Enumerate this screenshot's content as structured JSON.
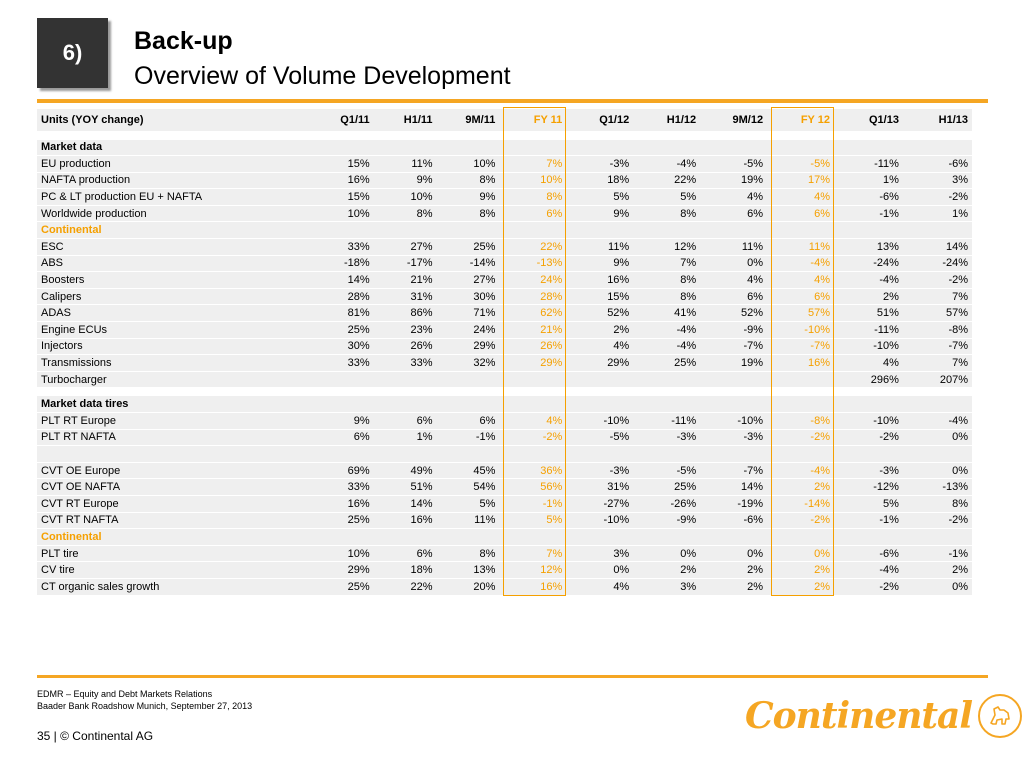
{
  "header": {
    "badge": "6)",
    "title": "Back-up",
    "subtitle": "Overview of Volume Development"
  },
  "table": {
    "columns": [
      "Units (YOY change)",
      "Q1/11",
      "H1/11",
      "9M/11",
      "FY 11",
      "Q1/12",
      "H1/12",
      "9M/12",
      "FY 12",
      "Q1/13",
      "H1/13"
    ],
    "rows": [
      {
        "type": "header"
      },
      {
        "type": "spacer"
      },
      {
        "type": "bold",
        "label": "Market data",
        "values": [
          "",
          "",
          "",
          "",
          "",
          "",
          "",
          "",
          "",
          ""
        ]
      },
      {
        "type": "row",
        "label": "EU production",
        "values": [
          "15%",
          "11%",
          "10%",
          "7%",
          "-3%",
          "-4%",
          "-5%",
          "-5%",
          "-11%",
          "-6%"
        ]
      },
      {
        "type": "row",
        "label": "NAFTA production",
        "values": [
          "16%",
          "9%",
          "8%",
          "10%",
          "18%",
          "22%",
          "19%",
          "17%",
          "1%",
          "3%"
        ]
      },
      {
        "type": "row",
        "label": "PC & LT production EU + NAFTA",
        "values": [
          "15%",
          "10%",
          "9%",
          "8%",
          "5%",
          "5%",
          "4%",
          "4%",
          "-6%",
          "-2%"
        ]
      },
      {
        "type": "row",
        "label": "Worldwide production",
        "values": [
          "10%",
          "8%",
          "8%",
          "6%",
          "9%",
          "8%",
          "6%",
          "6%",
          "-1%",
          "1%"
        ]
      },
      {
        "type": "section",
        "label": "Continental",
        "values": [
          "",
          "",
          "",
          "",
          "",
          "",
          "",
          "",
          "",
          ""
        ]
      },
      {
        "type": "row",
        "label": "ESC",
        "values": [
          "33%",
          "27%",
          "25%",
          "22%",
          "11%",
          "12%",
          "11%",
          "11%",
          "13%",
          "14%"
        ]
      },
      {
        "type": "row",
        "label": "ABS",
        "values": [
          "-18%",
          "-17%",
          "-14%",
          "-13%",
          "9%",
          "7%",
          "0%",
          "-4%",
          "-24%",
          "-24%"
        ]
      },
      {
        "type": "row",
        "label": "Boosters",
        "values": [
          "14%",
          "21%",
          "27%",
          "24%",
          "16%",
          "8%",
          "4%",
          "4%",
          "-4%",
          "-2%"
        ]
      },
      {
        "type": "row",
        "label": "Calipers",
        "values": [
          "28%",
          "31%",
          "30%",
          "28%",
          "15%",
          "8%",
          "6%",
          "6%",
          "2%",
          "7%"
        ]
      },
      {
        "type": "row",
        "label": "ADAS",
        "values": [
          "81%",
          "86%",
          "71%",
          "62%",
          "52%",
          "41%",
          "52%",
          "57%",
          "51%",
          "57%"
        ]
      },
      {
        "type": "row",
        "label": "Engine ECUs",
        "values": [
          "25%",
          "23%",
          "24%",
          "21%",
          "2%",
          "-4%",
          "-9%",
          "-10%",
          "-11%",
          "-8%"
        ]
      },
      {
        "type": "row",
        "label": "Injectors",
        "values": [
          "30%",
          "26%",
          "29%",
          "26%",
          "4%",
          "-4%",
          "-7%",
          "-7%",
          "-10%",
          "-7%"
        ]
      },
      {
        "type": "row",
        "label": "Transmissions",
        "values": [
          "33%",
          "33%",
          "32%",
          "29%",
          "29%",
          "25%",
          "19%",
          "16%",
          "4%",
          "7%"
        ]
      },
      {
        "type": "row",
        "label": "Turbocharger",
        "values": [
          "",
          "",
          "",
          "",
          "",
          "",
          "",
          "",
          "296%",
          "207%"
        ]
      },
      {
        "type": "spacer"
      },
      {
        "type": "bold",
        "label": "Market data tires",
        "values": [
          "",
          "",
          "",
          "",
          "",
          "",
          "",
          "",
          "",
          ""
        ]
      },
      {
        "type": "row",
        "label": "PLT RT Europe",
        "values": [
          "9%",
          "6%",
          "6%",
          "4%",
          "-10%",
          "-11%",
          "-10%",
          "-8%",
          "-10%",
          "-4%"
        ]
      },
      {
        "type": "row",
        "label": "PLT RT NAFTA",
        "values": [
          "6%",
          "1%",
          "-1%",
          "-2%",
          "-5%",
          "-3%",
          "-3%",
          "-2%",
          "-2%",
          "0%"
        ]
      },
      {
        "type": "row",
        "label": "",
        "values": [
          "",
          "",
          "",
          "",
          "",
          "",
          "",
          "",
          "",
          ""
        ]
      },
      {
        "type": "row",
        "label": "CVT OE Europe",
        "values": [
          "69%",
          "49%",
          "45%",
          "36%",
          "-3%",
          "-5%",
          "-7%",
          "-4%",
          "-3%",
          "0%"
        ]
      },
      {
        "type": "row",
        "label": "CVT OE NAFTA",
        "values": [
          "33%",
          "51%",
          "54%",
          "56%",
          "31%",
          "25%",
          "14%",
          "2%",
          "-12%",
          "-13%"
        ]
      },
      {
        "type": "row",
        "label": "CVT RT Europe",
        "values": [
          "16%",
          "14%",
          "5%",
          "-1%",
          "-27%",
          "-26%",
          "-19%",
          "-14%",
          "5%",
          "8%"
        ]
      },
      {
        "type": "row",
        "label": "CVT RT NAFTA",
        "values": [
          "25%",
          "16%",
          "11%",
          "5%",
          "-10%",
          "-9%",
          "-6%",
          "-2%",
          "-1%",
          "-2%"
        ]
      },
      {
        "type": "section",
        "label": "Continental",
        "values": [
          "",
          "",
          "",
          "",
          "",
          "",
          "",
          "",
          "",
          ""
        ]
      },
      {
        "type": "row",
        "label": "PLT tire",
        "values": [
          "10%",
          "6%",
          "8%",
          "7%",
          "3%",
          "0%",
          "0%",
          "0%",
          "-6%",
          "-1%"
        ]
      },
      {
        "type": "row",
        "label": "CV tire",
        "values": [
          "29%",
          "18%",
          "13%",
          "12%",
          "0%",
          "2%",
          "2%",
          "2%",
          "-4%",
          "2%"
        ]
      },
      {
        "type": "row",
        "label": "CT organic sales growth",
        "values": [
          "25%",
          "22%",
          "20%",
          "16%",
          "4%",
          "3%",
          "2%",
          "2%",
          "-2%",
          "0%"
        ]
      }
    ]
  },
  "footer": {
    "line1": "EDMR – Equity and Debt Markets Relations",
    "line2": "Baader Bank Roadshow Munich, September 27, 2013",
    "page": "35 | © Continental AG",
    "logo_text": "Continental"
  },
  "colors": {
    "accent": "#f5a623",
    "fy_highlight": "#f5a000",
    "badge_bg": "#333333",
    "row_bg": "#efefef"
  }
}
